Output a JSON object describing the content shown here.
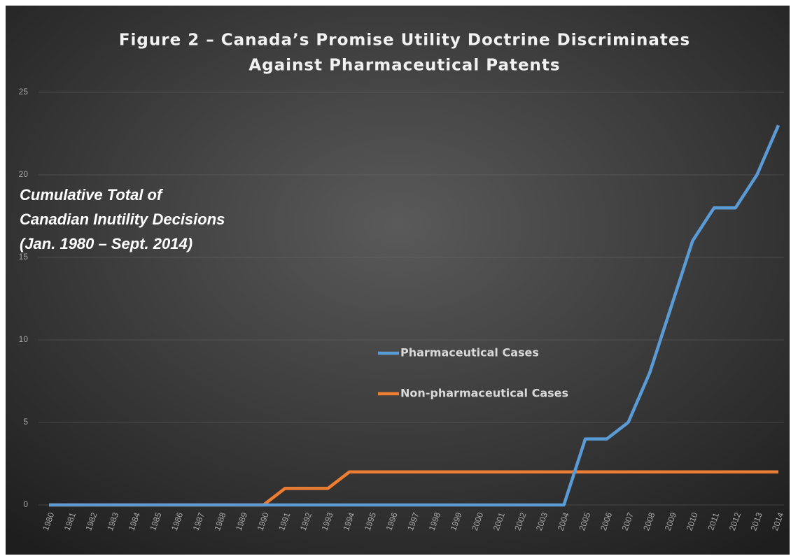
{
  "chart_data": {
    "type": "line",
    "title": [
      "Figure 2 – Canada’s Promise Utility Doctrine Discriminates",
      "Against Pharmaceutical Patents"
    ],
    "annotation": [
      "Cumulative Total of",
      "Canadian Inutility Decisions",
      "(Jan. 1980 – Sept. 2014)"
    ],
    "categories": [
      "1980",
      "1981",
      "1982",
      "1983",
      "1984",
      "1985",
      "1986",
      "1987",
      "1988",
      "1989",
      "1990",
      "1991",
      "1992",
      "1993",
      "1994",
      "1995",
      "1996",
      "1997",
      "1998",
      "1999",
      "2000",
      "2001",
      "2002",
      "2003",
      "2004",
      "2005",
      "2006",
      "2007",
      "2008",
      "2009",
      "2010",
      "2011",
      "2012",
      "2013",
      "2014"
    ],
    "series": [
      {
        "name": "Pharmaceutical Cases",
        "color": "#5b9bd5",
        "values": [
          0,
          0,
          0,
          0,
          0,
          0,
          0,
          0,
          0,
          0,
          0,
          0,
          0,
          0,
          0,
          0,
          0,
          0,
          0,
          0,
          0,
          0,
          0,
          0,
          0,
          4,
          4,
          5,
          8,
          12,
          16,
          18,
          18,
          20,
          23
        ]
      },
      {
        "name": "Non-pharmaceutical Cases",
        "color": "#ed7d31",
        "values": [
          0,
          0,
          0,
          0,
          0,
          0,
          0,
          0,
          0,
          0,
          0,
          1,
          1,
          1,
          2,
          2,
          2,
          2,
          2,
          2,
          2,
          2,
          2,
          2,
          2,
          2,
          2,
          2,
          2,
          2,
          2,
          2,
          2,
          2,
          2
        ]
      }
    ],
    "ylim": [
      0,
      25
    ],
    "yticks": [
      0,
      5,
      10,
      15,
      20,
      25
    ],
    "grid": true
  }
}
